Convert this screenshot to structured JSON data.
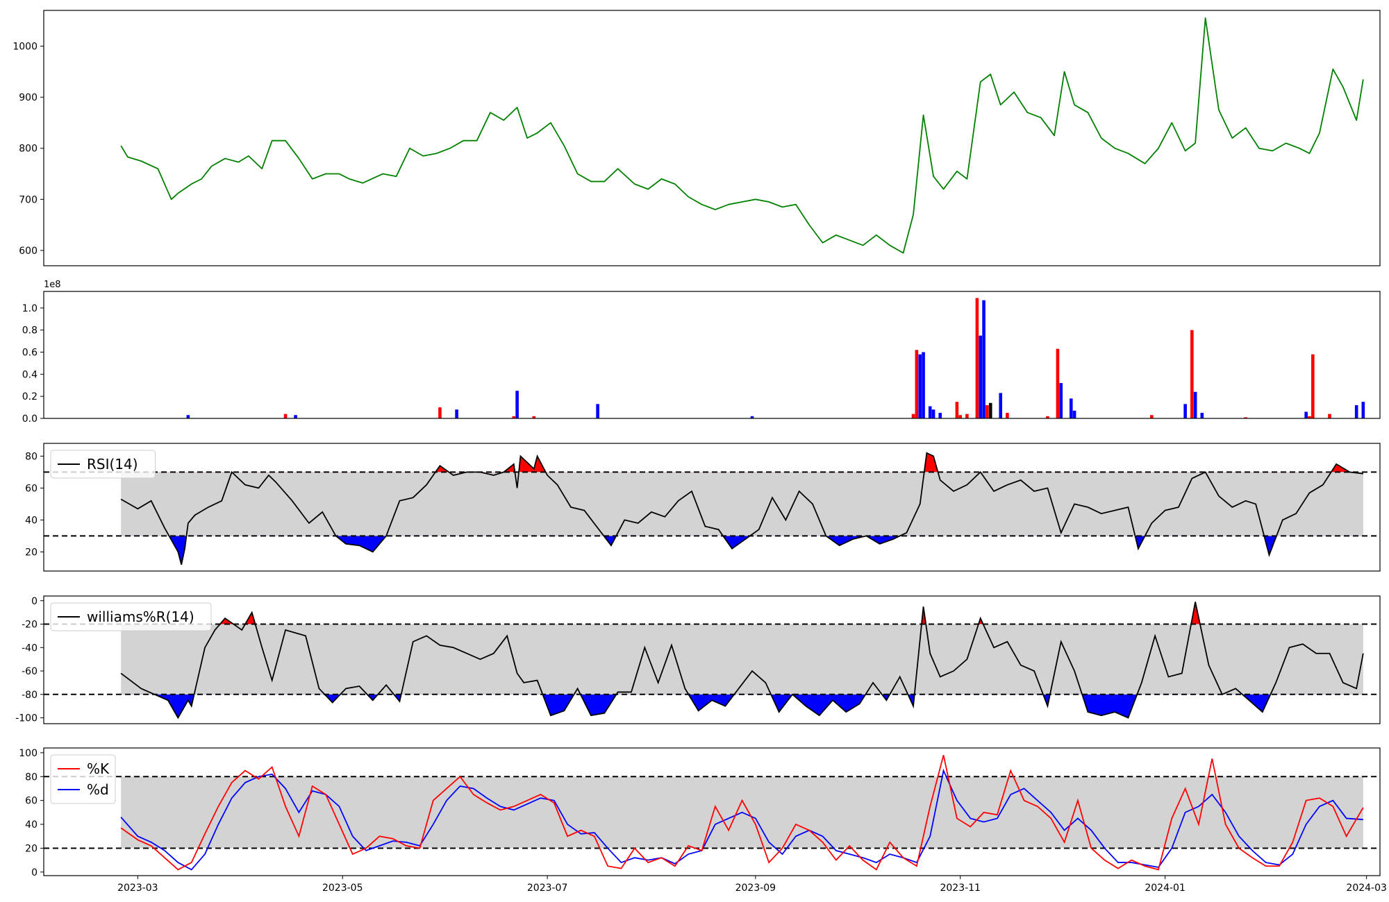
{
  "colors": {
    "price": "#008000",
    "up": "#ff0000",
    "down": "#0000ff",
    "band": "#d3d3d3",
    "line": "#000000",
    "k": "#ff0000",
    "d": "#0000ff"
  },
  "x_axis": {
    "ticks": [
      "2023-03",
      "2023-05",
      "2023-07",
      "2023-09",
      "2023-11",
      "2024-01",
      "2024-03"
    ],
    "start": "2023-02-01",
    "end": "2024-03-05"
  },
  "chart_data": [
    {
      "type": "line",
      "name": "price",
      "ylim": [
        570,
        1070
      ],
      "yticks": [
        600,
        700,
        800,
        900,
        1000
      ],
      "x": [
        "2023-02-24",
        "2023-02-26",
        "2023-03-02",
        "2023-03-07",
        "2023-03-11",
        "2023-03-13",
        "2023-03-17",
        "2023-03-20",
        "2023-03-23",
        "2023-03-27",
        "2023-03-31",
        "2023-04-03",
        "2023-04-07",
        "2023-04-10",
        "2023-04-14",
        "2023-04-18",
        "2023-04-22",
        "2023-04-26",
        "2023-04-30",
        "2023-05-03",
        "2023-05-07",
        "2023-05-13",
        "2023-05-17",
        "2023-05-21",
        "2023-05-25",
        "2023-05-29",
        "2023-06-02",
        "2023-06-06",
        "2023-06-10",
        "2023-06-14",
        "2023-06-18",
        "2023-06-22",
        "2023-06-25",
        "2023-06-28",
        "2023-07-02",
        "2023-07-06",
        "2023-07-10",
        "2023-07-14",
        "2023-07-18",
        "2023-07-22",
        "2023-07-27",
        "2023-07-31",
        "2023-08-04",
        "2023-08-08",
        "2023-08-12",
        "2023-08-16",
        "2023-08-20",
        "2023-08-24",
        "2023-08-28",
        "2023-09-01",
        "2023-09-05",
        "2023-09-09",
        "2023-09-13",
        "2023-09-17",
        "2023-09-21",
        "2023-09-25",
        "2023-09-29",
        "2023-10-03",
        "2023-10-07",
        "2023-10-11",
        "2023-10-15",
        "2023-10-18",
        "2023-10-21",
        "2023-10-24",
        "2023-10-27",
        "2023-10-31",
        "2023-11-03",
        "2023-11-07",
        "2023-11-10",
        "2023-11-13",
        "2023-11-17",
        "2023-11-21",
        "2023-11-25",
        "2023-11-29",
        "2023-12-02",
        "2023-12-05",
        "2023-12-09",
        "2023-12-13",
        "2023-12-17",
        "2023-12-21",
        "2023-12-26",
        "2023-12-30",
        "2024-01-03",
        "2024-01-07",
        "2024-01-10",
        "2024-01-13",
        "2024-01-17",
        "2024-01-21",
        "2024-01-25",
        "2024-01-29",
        "2024-02-02",
        "2024-02-06",
        "2024-02-10",
        "2024-02-13",
        "2024-02-16",
        "2024-02-20",
        "2024-02-23",
        "2024-02-27",
        "2024-02-29"
      ],
      "values": [
        805,
        783,
        775,
        760,
        700,
        712,
        730,
        740,
        765,
        780,
        773,
        785,
        760,
        815,
        815,
        780,
        740,
        750,
        750,
        740,
        732,
        750,
        745,
        800,
        785,
        790,
        800,
        815,
        815,
        870,
        855,
        880,
        820,
        830,
        850,
        805,
        750,
        735,
        735,
        760,
        730,
        720,
        740,
        730,
        705,
        690,
        680,
        690,
        695,
        700,
        695,
        685,
        690,
        650,
        615,
        630,
        620,
        610,
        630,
        610,
        595,
        670,
        865,
        745,
        720,
        755,
        740,
        930,
        945,
        885,
        910,
        870,
        860,
        825,
        950,
        885,
        870,
        820,
        800,
        790,
        770,
        800,
        850,
        795,
        810,
        1055,
        875,
        820,
        840,
        800,
        795,
        810,
        800,
        790,
        830,
        955,
        920,
        855,
        935
      ]
    },
    {
      "type": "bar",
      "name": "volume",
      "ylim": [
        0,
        1.15
      ],
      "yticks": [
        "0.0",
        "0.2",
        "0.4",
        "0.6",
        "0.8",
        "1.0"
      ],
      "offset_label": "1e8",
      "up": [
        {
          "x": "2023-04-14",
          "v": 0.04
        },
        {
          "x": "2023-05-30",
          "v": 0.1
        },
        {
          "x": "2023-06-21",
          "v": 0.02
        },
        {
          "x": "2023-06-27",
          "v": 0.02
        },
        {
          "x": "2023-10-18",
          "v": 0.04
        },
        {
          "x": "2023-10-19",
          "v": 0.62
        },
        {
          "x": "2023-10-31",
          "v": 0.15
        },
        {
          "x": "2023-11-01",
          "v": 0.03
        },
        {
          "x": "2023-11-03",
          "v": 0.04
        },
        {
          "x": "2023-11-06",
          "v": 1.09
        },
        {
          "x": "2023-11-09",
          "v": 0.12
        },
        {
          "x": "2023-11-15",
          "v": 0.05
        },
        {
          "x": "2023-11-27",
          "v": 0.02
        },
        {
          "x": "2023-11-30",
          "v": 0.63
        },
        {
          "x": "2023-12-28",
          "v": 0.03
        },
        {
          "x": "2024-01-09",
          "v": 0.8
        },
        {
          "x": "2024-01-25",
          "v": 0.01
        },
        {
          "x": "2024-02-13",
          "v": 0.02
        },
        {
          "x": "2024-02-14",
          "v": 0.58
        },
        {
          "x": "2024-02-19",
          "v": 0.04
        }
      ],
      "down": [
        {
          "x": "2023-03-16",
          "v": 0.03
        },
        {
          "x": "2023-04-17",
          "v": 0.03
        },
        {
          "x": "2023-06-04",
          "v": 0.08
        },
        {
          "x": "2023-06-22",
          "v": 0.25
        },
        {
          "x": "2023-07-16",
          "v": 0.13
        },
        {
          "x": "2023-08-31",
          "v": 0.02
        },
        {
          "x": "2023-10-20",
          "v": 0.58
        },
        {
          "x": "2023-10-21",
          "v": 0.6
        },
        {
          "x": "2023-10-23",
          "v": 0.11
        },
        {
          "x": "2023-10-24",
          "v": 0.08
        },
        {
          "x": "2023-10-26",
          "v": 0.05
        },
        {
          "x": "2023-11-07",
          "v": 0.75
        },
        {
          "x": "2023-11-08",
          "v": 1.07
        },
        {
          "x": "2023-11-13",
          "v": 0.23
        },
        {
          "x": "2023-12-01",
          "v": 0.32
        },
        {
          "x": "2023-12-04",
          "v": 0.18
        },
        {
          "x": "2023-12-05",
          "v": 0.07
        },
        {
          "x": "2024-01-07",
          "v": 0.13
        },
        {
          "x": "2024-01-10",
          "v": 0.24
        },
        {
          "x": "2024-01-12",
          "v": 0.05
        },
        {
          "x": "2024-02-12",
          "v": 0.06
        },
        {
          "x": "2024-02-27",
          "v": 0.12
        },
        {
          "x": "2024-02-29",
          "v": 0.15
        }
      ],
      "neutral": [
        {
          "x": "2023-11-10",
          "v": 0.14
        }
      ]
    },
    {
      "type": "line",
      "name": "rsi",
      "ylim": [
        8,
        88
      ],
      "yticks": [
        20,
        40,
        60,
        80
      ],
      "band": [
        30,
        70
      ],
      "legend": [
        "RSI(14)"
      ],
      "x": [
        "2023-02-24",
        "2023-03-01",
        "2023-03-05",
        "2023-03-09",
        "2023-03-13",
        "2023-03-14",
        "2023-03-15",
        "2023-03-16",
        "2023-03-18",
        "2023-03-22",
        "2023-03-26",
        "2023-03-29",
        "2023-04-02",
        "2023-04-06",
        "2023-04-09",
        "2023-04-11",
        "2023-04-16",
        "2023-04-21",
        "2023-04-25",
        "2023-04-29",
        "2023-05-02",
        "2023-05-06",
        "2023-05-10",
        "2023-05-14",
        "2023-05-18",
        "2023-05-22",
        "2023-05-26",
        "2023-05-30",
        "2023-06-03",
        "2023-06-07",
        "2023-06-11",
        "2023-06-15",
        "2023-06-18",
        "2023-06-21",
        "2023-06-22",
        "2023-06-23",
        "2023-06-27",
        "2023-06-28",
        "2023-07-01",
        "2023-07-04",
        "2023-07-08",
        "2023-07-12",
        "2023-07-16",
        "2023-07-20",
        "2023-07-24",
        "2023-07-28",
        "2023-08-01",
        "2023-08-05",
        "2023-08-09",
        "2023-08-13",
        "2023-08-17",
        "2023-08-21",
        "2023-08-25",
        "2023-08-29",
        "2023-09-02",
        "2023-09-06",
        "2023-09-10",
        "2023-09-14",
        "2023-09-18",
        "2023-09-22",
        "2023-09-26",
        "2023-09-30",
        "2023-10-04",
        "2023-10-08",
        "2023-10-12",
        "2023-10-16",
        "2023-10-20",
        "2023-10-22",
        "2023-10-24",
        "2023-10-26",
        "2023-10-30",
        "2023-11-03",
        "2023-11-07",
        "2023-11-11",
        "2023-11-15",
        "2023-11-19",
        "2023-11-23",
        "2023-11-27",
        "2023-12-01",
        "2023-12-05",
        "2023-12-09",
        "2023-12-13",
        "2023-12-17",
        "2023-12-21",
        "2023-12-24",
        "2023-12-28",
        "2024-01-01",
        "2024-01-05",
        "2024-01-09",
        "2024-01-13",
        "2024-01-17",
        "2024-01-21",
        "2024-01-25",
        "2024-01-28",
        "2024-02-01",
        "2024-02-05",
        "2024-02-09",
        "2024-02-13",
        "2024-02-17",
        "2024-02-21",
        "2024-02-25",
        "2024-02-29"
      ],
      "values": [
        53,
        47,
        52,
        35,
        20,
        12,
        22,
        38,
        43,
        48,
        52,
        70,
        62,
        60,
        68,
        64,
        52,
        38,
        45,
        30,
        25,
        24,
        20,
        30,
        52,
        54,
        62,
        74,
        68,
        70,
        70,
        68,
        70,
        75,
        60,
        80,
        72,
        80,
        68,
        62,
        48,
        46,
        35,
        24,
        40,
        38,
        45,
        42,
        52,
        58,
        36,
        34,
        22,
        28,
        34,
        54,
        40,
        58,
        50,
        30,
        24,
        28,
        30,
        25,
        28,
        32,
        50,
        82,
        80,
        65,
        58,
        62,
        70,
        58,
        62,
        65,
        58,
        60,
        32,
        50,
        48,
        44,
        46,
        48,
        22,
        38,
        46,
        48,
        66,
        70,
        55,
        48,
        52,
        50,
        18,
        40,
        44,
        57,
        62,
        75,
        70,
        69
      ]
    },
    {
      "type": "line",
      "name": "williams",
      "ylim": [
        -105,
        4
      ],
      "yticks": [
        0,
        -20,
        -40,
        -60,
        -80,
        -100
      ],
      "band": [
        -80,
        -20
      ],
      "legend": [
        "williams%R(14)"
      ],
      "x": [
        "2023-02-24",
        "2023-03-02",
        "2023-03-06",
        "2023-03-10",
        "2023-03-13",
        "2023-03-16",
        "2023-03-17",
        "2023-03-21",
        "2023-03-24",
        "2023-03-27",
        "2023-04-01",
        "2023-04-04",
        "2023-04-07",
        "2023-04-10",
        "2023-04-14",
        "2023-04-20",
        "2023-04-24",
        "2023-04-28",
        "2023-05-02",
        "2023-05-06",
        "2023-05-10",
        "2023-05-14",
        "2023-05-18",
        "2023-05-22",
        "2023-05-26",
        "2023-05-30",
        "2023-06-03",
        "2023-06-07",
        "2023-06-11",
        "2023-06-15",
        "2023-06-19",
        "2023-06-22",
        "2023-06-24",
        "2023-06-28",
        "2023-07-02",
        "2023-07-06",
        "2023-07-10",
        "2023-07-14",
        "2023-07-18",
        "2023-07-22",
        "2023-07-26",
        "2023-07-30",
        "2023-08-03",
        "2023-08-07",
        "2023-08-11",
        "2023-08-15",
        "2023-08-19",
        "2023-08-23",
        "2023-08-27",
        "2023-08-31",
        "2023-09-04",
        "2023-09-08",
        "2023-09-12",
        "2023-09-16",
        "2023-09-20",
        "2023-09-24",
        "2023-09-28",
        "2023-10-02",
        "2023-10-06",
        "2023-10-10",
        "2023-10-14",
        "2023-10-18",
        "2023-10-21",
        "2023-10-23",
        "2023-10-26",
        "2023-10-30",
        "2023-11-03",
        "2023-11-07",
        "2023-11-11",
        "2023-11-15",
        "2023-11-19",
        "2023-11-23",
        "2023-11-27",
        "2023-12-01",
        "2023-12-05",
        "2023-12-09",
        "2023-12-13",
        "2023-12-17",
        "2023-12-21",
        "2023-12-25",
        "2023-12-29",
        "2024-01-02",
        "2024-01-06",
        "2024-01-10",
        "2024-01-14",
        "2024-01-18",
        "2024-01-22",
        "2024-01-26",
        "2024-01-30",
        "2024-02-03",
        "2024-02-07",
        "2024-02-11",
        "2024-02-15",
        "2024-02-19",
        "2024-02-23",
        "2024-02-27",
        "2024-02-29"
      ],
      "values": [
        -62,
        -75,
        -80,
        -85,
        -100,
        -85,
        -90,
        -40,
        -25,
        -15,
        -25,
        -10,
        -40,
        -68,
        -25,
        -30,
        -75,
        -87,
        -75,
        -73,
        -85,
        -72,
        -86,
        -35,
        -30,
        -38,
        -40,
        -45,
        -50,
        -45,
        -30,
        -62,
        -70,
        -68,
        -98,
        -94,
        -75,
        -98,
        -96,
        -78,
        -78,
        -40,
        -70,
        -38,
        -75,
        -94,
        -85,
        -90,
        -75,
        -60,
        -70,
        -95,
        -80,
        -90,
        -98,
        -85,
        -95,
        -88,
        -70,
        -85,
        -65,
        -90,
        -5,
        -45,
        -65,
        -60,
        -50,
        -15,
        -40,
        -35,
        -55,
        -60,
        -90,
        -35,
        -60,
        -95,
        -98,
        -95,
        -100,
        -70,
        -30,
        -65,
        -62,
        -1,
        -55,
        -80,
        -75,
        -85,
        -95,
        -70,
        -40,
        -37,
        -45,
        -45,
        -70,
        -75,
        -45
      ]
    },
    {
      "type": "line",
      "name": "stochastic",
      "ylim": [
        -3,
        104
      ],
      "yticks": [
        0,
        20,
        40,
        60,
        80,
        100
      ],
      "band": [
        20,
        80
      ],
      "legend": [
        "%K",
        "%d"
      ],
      "x": [
        "2023-02-24",
        "2023-03-01",
        "2023-03-05",
        "2023-03-09",
        "2023-03-13",
        "2023-03-17",
        "2023-03-21",
        "2023-03-25",
        "2023-03-29",
        "2023-04-02",
        "2023-04-06",
        "2023-04-10",
        "2023-04-14",
        "2023-04-18",
        "2023-04-22",
        "2023-04-26",
        "2023-04-30",
        "2023-05-04",
        "2023-05-08",
        "2023-05-12",
        "2023-05-16",
        "2023-05-20",
        "2023-05-24",
        "2023-05-28",
        "2023-06-01",
        "2023-06-05",
        "2023-06-09",
        "2023-06-13",
        "2023-06-17",
        "2023-06-21",
        "2023-06-25",
        "2023-06-29",
        "2023-07-03",
        "2023-07-07",
        "2023-07-11",
        "2023-07-15",
        "2023-07-19",
        "2023-07-23",
        "2023-07-27",
        "2023-07-31",
        "2023-08-04",
        "2023-08-08",
        "2023-08-12",
        "2023-08-16",
        "2023-08-20",
        "2023-08-24",
        "2023-08-28",
        "2023-09-01",
        "2023-09-05",
        "2023-09-09",
        "2023-09-13",
        "2023-09-17",
        "2023-09-21",
        "2023-09-25",
        "2023-09-29",
        "2023-10-03",
        "2023-10-07",
        "2023-10-11",
        "2023-10-15",
        "2023-10-19",
        "2023-10-23",
        "2023-10-27",
        "2023-10-31",
        "2023-11-04",
        "2023-11-08",
        "2023-11-12",
        "2023-11-16",
        "2023-11-20",
        "2023-11-24",
        "2023-11-28",
        "2023-12-02",
        "2023-12-06",
        "2023-12-10",
        "2023-12-14",
        "2023-12-18",
        "2023-12-22",
        "2023-12-26",
        "2023-12-30",
        "2024-01-03",
        "2024-01-07",
        "2024-01-11",
        "2024-01-15",
        "2024-01-19",
        "2024-01-23",
        "2024-01-27",
        "2024-01-31",
        "2024-02-04",
        "2024-02-08",
        "2024-02-12",
        "2024-02-16",
        "2024-02-20",
        "2024-02-24",
        "2024-02-29"
      ],
      "k": [
        37,
        27,
        22,
        12,
        2,
        8,
        32,
        55,
        75,
        85,
        78,
        88,
        55,
        30,
        72,
        65,
        40,
        15,
        20,
        30,
        28,
        22,
        20,
        60,
        70,
        80,
        65,
        58,
        52,
        55,
        60,
        65,
        58,
        30,
        35,
        30,
        5,
        3,
        20,
        8,
        12,
        5,
        22,
        18,
        55,
        35,
        60,
        40,
        8,
        20,
        40,
        35,
        25,
        10,
        22,
        10,
        2,
        25,
        12,
        5,
        55,
        98,
        45,
        38,
        50,
        48,
        85,
        60,
        55,
        45,
        25,
        60,
        20,
        10,
        3,
        10,
        5,
        2,
        45,
        70,
        40,
        95,
        40,
        20,
        12,
        5,
        5,
        25,
        60,
        62,
        55,
        30,
        54
      ],
      "d": [
        46,
        30,
        25,
        18,
        8,
        2,
        15,
        40,
        62,
        75,
        80,
        82,
        70,
        50,
        68,
        65,
        55,
        30,
        18,
        22,
        26,
        25,
        22,
        40,
        60,
        72,
        70,
        62,
        55,
        52,
        57,
        62,
        60,
        40,
        32,
        33,
        20,
        8,
        12,
        10,
        12,
        7,
        15,
        18,
        40,
        45,
        50,
        45,
        25,
        15,
        30,
        35,
        30,
        18,
        15,
        12,
        8,
        15,
        12,
        8,
        30,
        85,
        60,
        45,
        42,
        45,
        65,
        70,
        60,
        50,
        35,
        45,
        35,
        20,
        8,
        8,
        6,
        4,
        20,
        50,
        55,
        65,
        50,
        30,
        18,
        8,
        6,
        15,
        40,
        55,
        60,
        45,
        44
      ]
    }
  ]
}
